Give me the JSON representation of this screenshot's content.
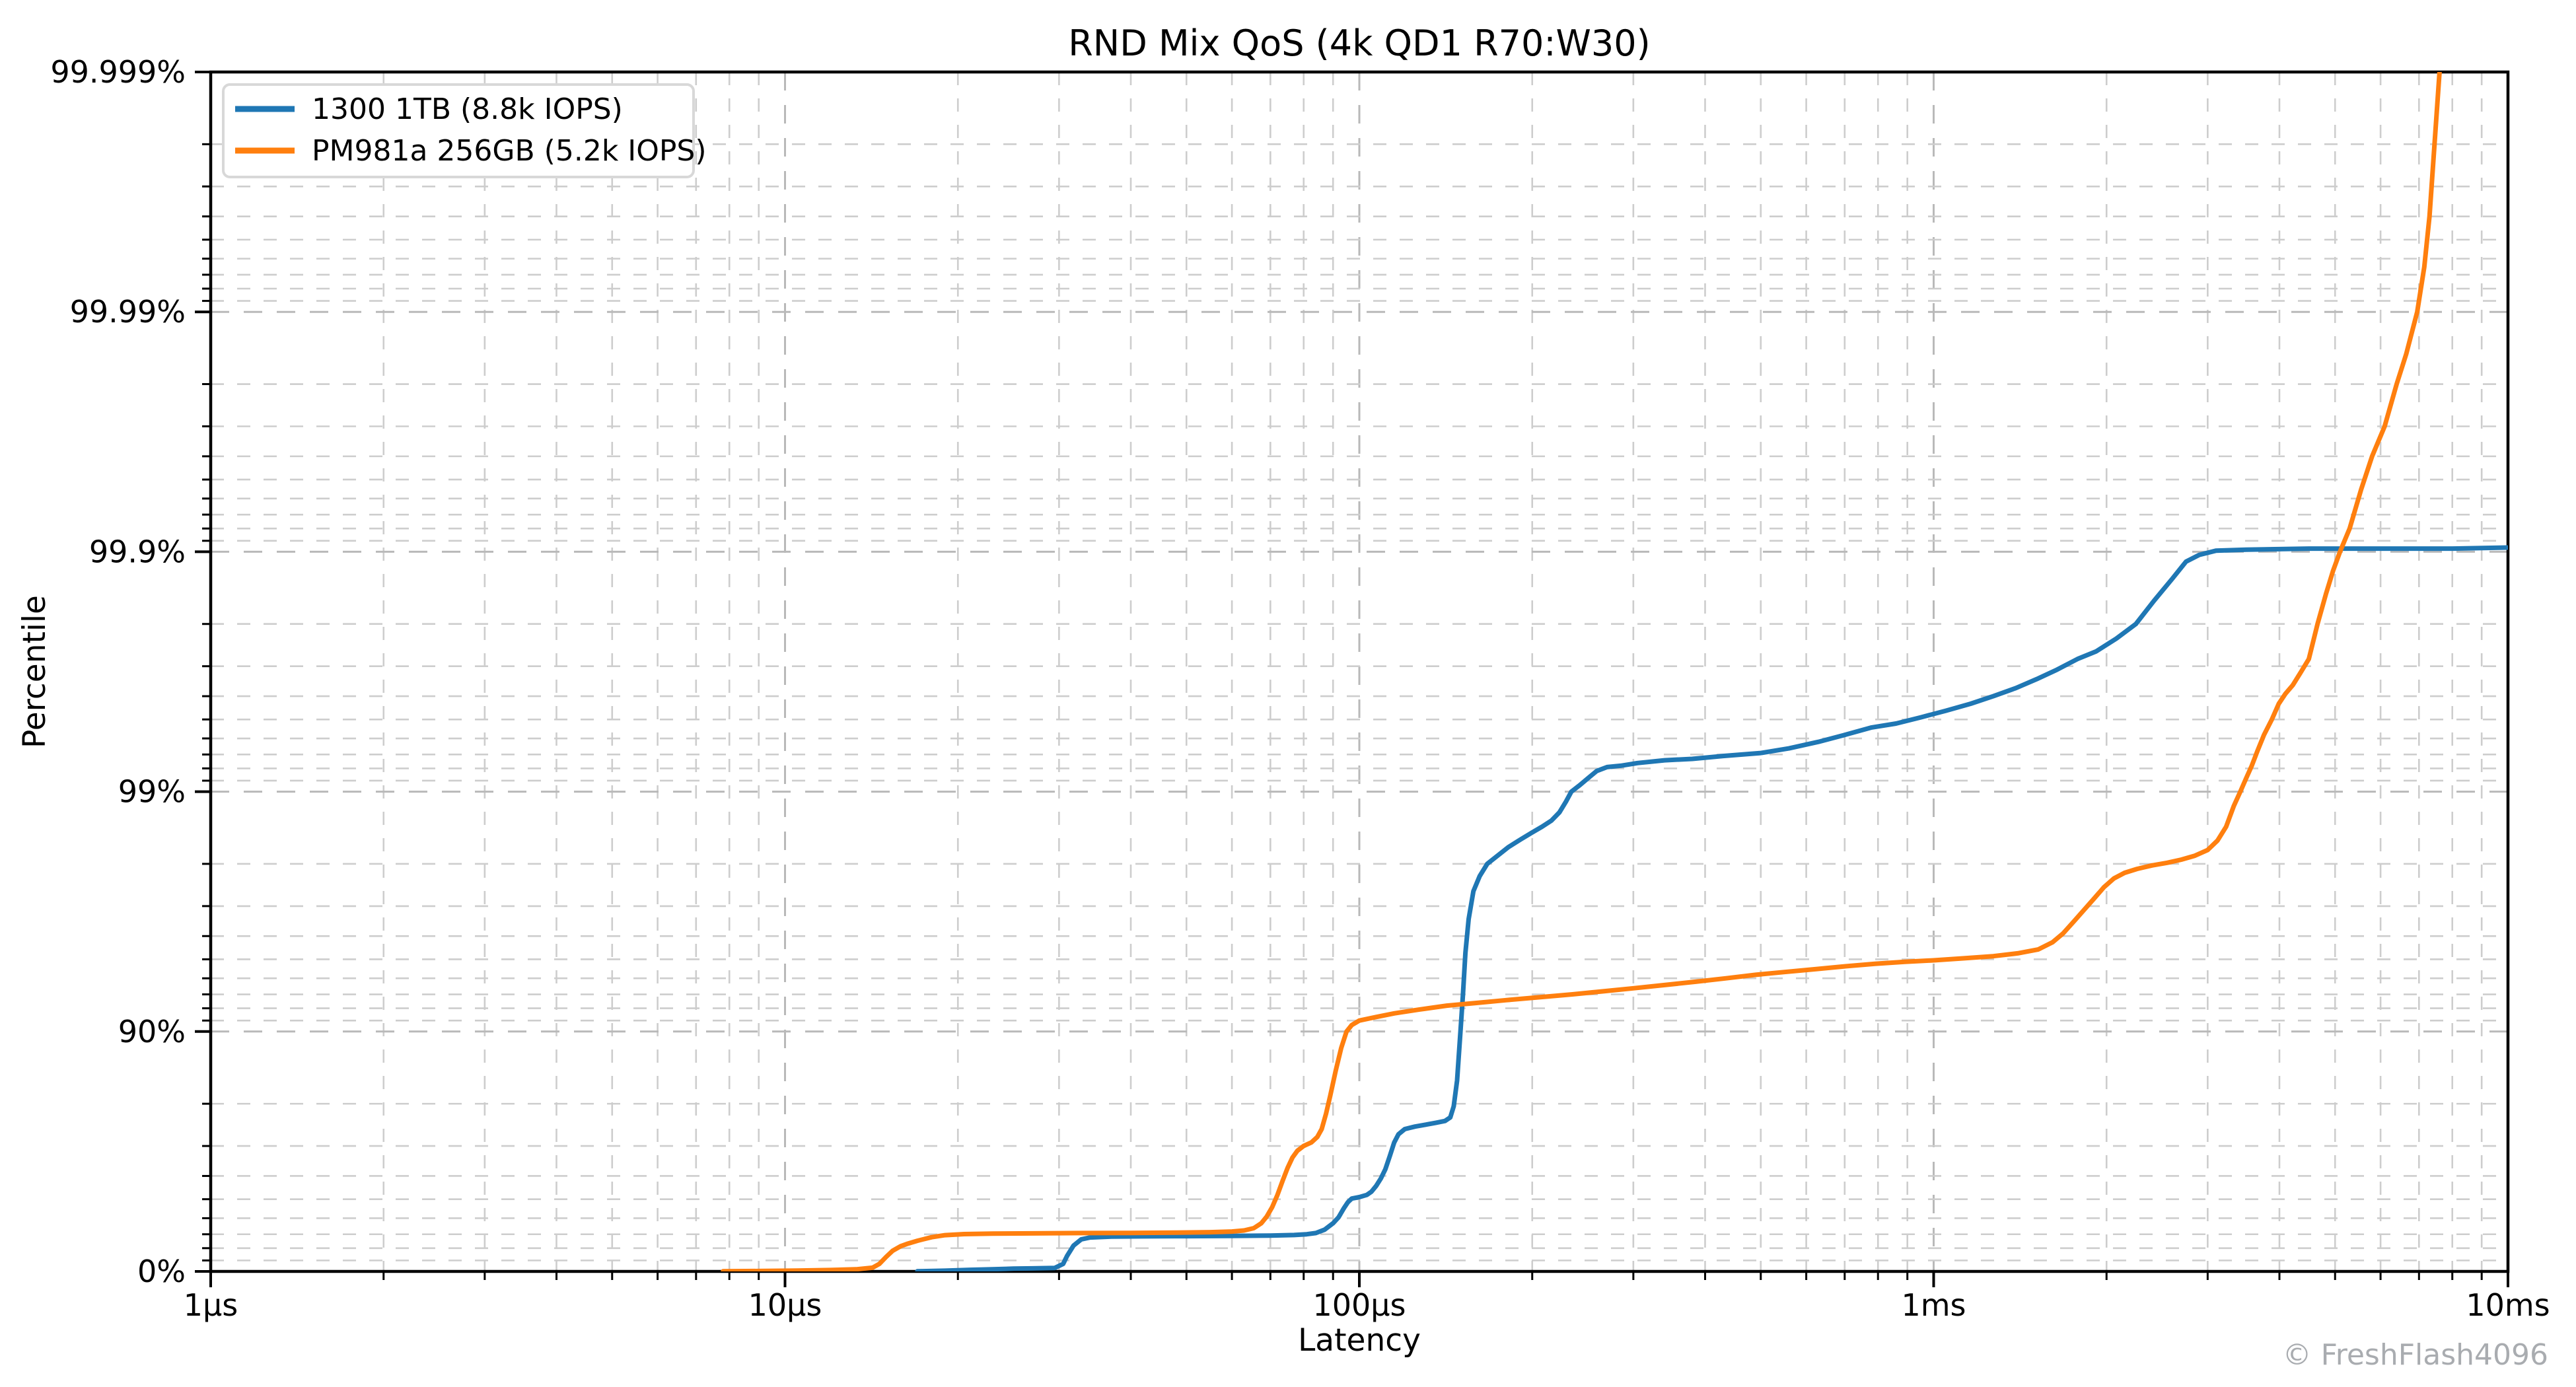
{
  "chart_data": {
    "type": "line",
    "title": "RND Mix QoS (4k QD1 R70:W30)",
    "xlabel": "Latency",
    "ylabel": "Percentile",
    "watermark": "© FreshFlash4096",
    "grid": true,
    "legend_position": "upper-left",
    "x_axis": {
      "scale": "log",
      "unit": "µs",
      "min_us": 1,
      "max_us": 10000,
      "ticks": [
        {
          "label": "1µs",
          "us": 1
        },
        {
          "label": "10µs",
          "us": 10
        },
        {
          "label": "100µs",
          "us": 100
        },
        {
          "label": "1ms",
          "us": 1000
        },
        {
          "label": "10ms",
          "us": 10000
        }
      ]
    },
    "y_axis": {
      "scale": "log-percentile-nines",
      "max_nines": 5,
      "ticks": [
        {
          "label": "0%",
          "nines": 0
        },
        {
          "label": "90%",
          "nines": 1
        },
        {
          "label": "99%",
          "nines": 2
        },
        {
          "label": "99.9%",
          "nines": 3
        },
        {
          "label": "99.99%",
          "nines": 4
        },
        {
          "label": "99.999%",
          "nines": 5
        }
      ]
    },
    "series": [
      {
        "name": "1300 1TB (8.8k IOPS)",
        "color": "#1f77b4",
        "points_us_pct": [
          [
            17,
            0.1
          ],
          [
            19,
            0.7
          ],
          [
            21,
            1.5
          ],
          [
            23,
            2.1
          ],
          [
            25,
            2.6
          ],
          [
            27,
            2.9
          ],
          [
            29.5,
            3.3
          ],
          [
            30.5,
            7
          ],
          [
            31,
            14
          ],
          [
            31.8,
            22
          ],
          [
            32.8,
            26.5
          ],
          [
            34,
            27.8
          ],
          [
            37,
            28.4
          ],
          [
            42,
            28.6
          ],
          [
            50,
            28.7
          ],
          [
            60,
            28.9
          ],
          [
            70,
            29.1
          ],
          [
            77,
            29.5
          ],
          [
            81,
            30
          ],
          [
            84,
            30.8
          ],
          [
            87,
            33
          ],
          [
            90,
            37
          ],
          [
            92,
            40.5
          ],
          [
            94,
            45.5
          ],
          [
            95.5,
            48.5
          ],
          [
            97,
            50.3
          ],
          [
            100,
            51
          ],
          [
            103,
            52
          ],
          [
            105,
            53.5
          ],
          [
            107,
            56
          ],
          [
            109,
            59
          ],
          [
            111,
            62.5
          ],
          [
            113,
            67
          ],
          [
            115,
            71
          ],
          [
            117,
            73.2
          ],
          [
            120,
            74.5
          ],
          [
            125,
            75.1
          ],
          [
            130,
            75.5
          ],
          [
            136,
            76
          ],
          [
            141,
            76.4
          ],
          [
            144,
            77.2
          ],
          [
            146,
            79.5
          ],
          [
            148,
            84
          ],
          [
            150,
            90
          ],
          [
            151.5,
            93
          ],
          [
            153,
            95.3
          ],
          [
            155,
            96.6
          ],
          [
            158,
            97.4
          ],
          [
            162,
            97.75
          ],
          [
            167,
            98
          ],
          [
            174,
            98.15
          ],
          [
            182,
            98.3
          ],
          [
            191,
            98.42
          ],
          [
            200,
            98.52
          ],
          [
            208,
            98.6
          ],
          [
            216,
            98.68
          ],
          [
            223,
            98.78
          ],
          [
            229,
            98.9
          ],
          [
            234,
            99
          ],
          [
            242,
            99.06
          ],
          [
            250,
            99.12
          ],
          [
            259,
            99.18
          ],
          [
            270,
            99.21
          ],
          [
            285,
            99.22
          ],
          [
            305,
            99.24
          ],
          [
            340,
            99.26
          ],
          [
            380,
            99.27
          ],
          [
            430,
            99.29
          ],
          [
            500,
            99.31
          ],
          [
            560,
            99.34
          ],
          [
            630,
            99.38
          ],
          [
            700,
            99.42
          ],
          [
            780,
            99.46
          ],
          [
            860,
            99.48
          ],
          [
            950,
            99.51
          ],
          [
            1050,
            99.54
          ],
          [
            1160,
            99.57
          ],
          [
            1270,
            99.6
          ],
          [
            1390,
            99.63
          ],
          [
            1510,
            99.66
          ],
          [
            1640,
            99.69
          ],
          [
            1780,
            99.72
          ],
          [
            1920,
            99.74
          ],
          [
            2080,
            99.77
          ],
          [
            2250,
            99.8
          ],
          [
            2420,
            99.84
          ],
          [
            2600,
            99.87
          ],
          [
            2750,
            99.89
          ],
          [
            2900,
            99.897
          ],
          [
            3100,
            99.901
          ],
          [
            3500,
            99.902
          ],
          [
            4500,
            99.903
          ],
          [
            6000,
            99.903
          ],
          [
            8000,
            99.903
          ],
          [
            10000,
            99.904
          ]
        ]
      },
      {
        "name": "PM981a 256GB (5.2k IOPS)",
        "color": "#ff7f0e",
        "points_us_pct": [
          [
            7.8,
            0.1
          ],
          [
            9,
            0.4
          ],
          [
            10.5,
            0.8
          ],
          [
            12,
            1.3
          ],
          [
            13.3,
            2
          ],
          [
            14.2,
            3.5
          ],
          [
            14.6,
            7
          ],
          [
            15,
            13
          ],
          [
            15.4,
            18
          ],
          [
            15.9,
            21.5
          ],
          [
            16.3,
            23.2
          ],
          [
            17,
            25.5
          ],
          [
            18,
            28
          ],
          [
            19,
            29.4
          ],
          [
            20.5,
            30.1
          ],
          [
            23,
            30.4
          ],
          [
            27,
            30.6
          ],
          [
            33,
            30.8
          ],
          [
            40,
            30.9
          ],
          [
            48,
            31.1
          ],
          [
            55,
            31.4
          ],
          [
            60,
            31.8
          ],
          [
            63,
            32.5
          ],
          [
            65.5,
            34
          ],
          [
            67.5,
            37
          ],
          [
            69,
            41
          ],
          [
            70.5,
            46
          ],
          [
            72,
            52
          ],
          [
            73.5,
            58
          ],
          [
            75,
            63
          ],
          [
            76.5,
            66.5
          ],
          [
            78,
            68.6
          ],
          [
            80,
            70
          ],
          [
            82.5,
            71
          ],
          [
            84.5,
            72.5
          ],
          [
            86,
            74.5
          ],
          [
            87.5,
            78
          ],
          [
            89,
            81.5
          ],
          [
            91,
            85.5
          ],
          [
            93,
            88.3
          ],
          [
            95,
            90
          ],
          [
            97,
            90.6
          ],
          [
            100,
            91
          ],
          [
            107,
            91.3
          ],
          [
            115,
            91.6
          ],
          [
            127,
            91.9
          ],
          [
            142,
            92.2
          ],
          [
            160,
            92.4
          ],
          [
            180,
            92.6
          ],
          [
            205,
            92.8
          ],
          [
            235,
            93
          ],
          [
            265,
            93.2
          ],
          [
            300,
            93.4
          ],
          [
            340,
            93.6
          ],
          [
            385,
            93.8
          ],
          [
            435,
            94
          ],
          [
            490,
            94.2
          ],
          [
            550,
            94.35
          ],
          [
            620,
            94.5
          ],
          [
            700,
            94.65
          ],
          [
            790,
            94.78
          ],
          [
            890,
            94.88
          ],
          [
            1000,
            94.95
          ],
          [
            1130,
            95.05
          ],
          [
            1270,
            95.15
          ],
          [
            1400,
            95.28
          ],
          [
            1520,
            95.45
          ],
          [
            1610,
            95.75
          ],
          [
            1680,
            96.1
          ],
          [
            1750,
            96.5
          ],
          [
            1830,
            96.9
          ],
          [
            1900,
            97.2
          ],
          [
            1980,
            97.5
          ],
          [
            2060,
            97.7
          ],
          [
            2150,
            97.82
          ],
          [
            2260,
            97.9
          ],
          [
            2400,
            97.97
          ],
          [
            2550,
            98.02
          ],
          [
            2700,
            98.08
          ],
          [
            2850,
            98.15
          ],
          [
            3000,
            98.25
          ],
          [
            3120,
            98.4
          ],
          [
            3230,
            98.6
          ],
          [
            3330,
            98.85
          ],
          [
            3420,
            99
          ],
          [
            3500,
            99.12
          ],
          [
            3580,
            99.22
          ],
          [
            3660,
            99.32
          ],
          [
            3760,
            99.42
          ],
          [
            3880,
            99.5
          ],
          [
            3990,
            99.57
          ],
          [
            4100,
            99.61
          ],
          [
            4220,
            99.64
          ],
          [
            4350,
            99.68
          ],
          [
            4500,
            99.72
          ],
          [
            4660,
            99.8
          ],
          [
            4820,
            99.85
          ],
          [
            4960,
            99.88
          ],
          [
            5100,
            99.9
          ],
          [
            5300,
            99.92
          ],
          [
            5550,
            99.945
          ],
          [
            5800,
            99.96
          ],
          [
            6100,
            99.97
          ],
          [
            6400,
            99.98
          ],
          [
            6650,
            99.985
          ],
          [
            6950,
            99.99
          ],
          [
            7150,
            99.9935
          ],
          [
            7300,
            99.996
          ],
          [
            7450,
            99.998
          ],
          [
            7600,
            99.999
          ]
        ]
      }
    ],
    "legend": [
      {
        "label": "1300 1TB (8.8k IOPS)",
        "color": "#1f77b4"
      },
      {
        "label": "PM981a 256GB (5.2k IOPS)",
        "color": "#ff7f0e"
      }
    ]
  }
}
